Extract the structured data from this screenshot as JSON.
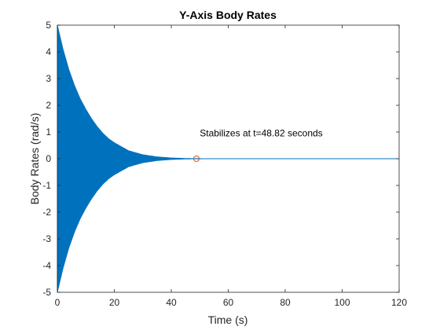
{
  "chart_data": {
    "type": "line",
    "title": "Y-Axis Body Rates",
    "xlabel": "Time (s)",
    "ylabel": "Body Rates (rad/s)",
    "xlim": [
      0,
      120
    ],
    "ylim": [
      -5,
      5
    ],
    "xticks": [
      0,
      20,
      40,
      60,
      80,
      100,
      120
    ],
    "yticks": [
      -5,
      -4,
      -3,
      -2,
      -1,
      0,
      1,
      2,
      3,
      4,
      5
    ],
    "grid": false,
    "series": [
      {
        "style": "decaying oscillation",
        "color": "#0072BD",
        "envelope": {
          "t": [
            0,
            2,
            4,
            6,
            8,
            10,
            12,
            14,
            16,
            18,
            20,
            25,
            30,
            35,
            40,
            45,
            50,
            60,
            80,
            100,
            120
          ],
          "amplitude": [
            5.0,
            4.1,
            3.35,
            2.75,
            2.25,
            1.85,
            1.5,
            1.2,
            0.95,
            0.75,
            0.6,
            0.3,
            0.15,
            0.07,
            0.03,
            0.01,
            0.005,
            0.0,
            0.0,
            0.0,
            0.0
          ]
        }
      }
    ],
    "marker": {
      "x": 48.82,
      "y": 0,
      "shape": "circle",
      "color": "#D95319"
    },
    "annotation": {
      "text": "Stabilizes at t=48.82 seconds",
      "x": 50,
      "y": 0.95
    }
  }
}
